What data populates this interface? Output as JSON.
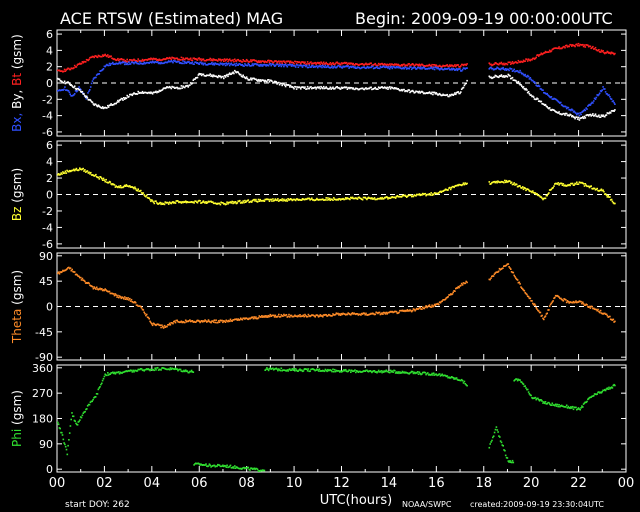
{
  "header": {
    "title": "ACE RTSW (Estimated) MAG",
    "begin": "Begin: 2009-09-19 00:00:00UTC"
  },
  "footer": {
    "start_doy": "start DOY: 262",
    "xlabel": "UTC(hours)",
    "source": "NOAA/SWPC",
    "created": "created:2009-09-19 23:30:04UTC"
  },
  "x_ticks": [
    "00",
    "02",
    "04",
    "06",
    "08",
    "10",
    "12",
    "14",
    "16",
    "18",
    "20",
    "22",
    "00"
  ],
  "colors": {
    "background": "#000000",
    "axes": "#ffffff",
    "bt": "#ff2020",
    "bx": "#3050ff",
    "by": "#ffffff",
    "bz": "#ffff30",
    "theta": "#ff8c28",
    "phi": "#30e030"
  },
  "chart_data": [
    {
      "type": "scatter",
      "panel": "bt-bx-by",
      "ylabel_parts": [
        {
          "text": "Bx,",
          "color": "#3050ff"
        },
        {
          "text": " By,",
          "color": "#ffffff"
        },
        {
          "text": " Bt",
          "color": "#ff2020"
        },
        {
          "text": "  (gsm)",
          "color": "#ffffff"
        }
      ],
      "yticks": [
        6,
        4,
        2,
        0,
        -2,
        -4,
        -6
      ],
      "ylim": [
        -6.5,
        6.5
      ],
      "xlim": [
        0,
        24
      ],
      "zero_line": true,
      "series": [
        {
          "name": "Bt",
          "color": "#ff2020",
          "x": [
            0,
            0.5,
            1,
            1.5,
            2,
            2.5,
            3,
            3.5,
            4,
            5,
            6,
            7,
            8,
            9,
            10,
            11,
            12,
            13,
            14,
            15,
            16,
            17,
            17.3,
            18.2,
            19,
            20,
            20.5,
            21,
            21.5,
            22,
            22.5,
            23,
            23.5
          ],
          "y": [
            1.5,
            1.8,
            2.5,
            3.3,
            3.5,
            3.0,
            2.8,
            2.9,
            3.0,
            3.1,
            3.0,
            2.9,
            2.8,
            2.7,
            2.6,
            2.5,
            2.5,
            2.4,
            2.3,
            2.3,
            2.2,
            2.2,
            2.4,
            2.4,
            2.5,
            3.0,
            3.8,
            4.3,
            4.6,
            4.8,
            4.5,
            3.9,
            3.7
          ]
        },
        {
          "name": "Bx",
          "color": "#3050ff",
          "x": [
            0,
            0.3,
            0.6,
            0.9,
            1.2,
            1.5,
            2,
            2.5,
            3,
            4,
            5,
            6,
            7,
            8,
            9,
            10,
            11,
            12,
            13,
            14,
            15,
            16,
            17,
            17.3,
            18.2,
            19,
            19.5,
            20,
            20.5,
            21,
            21.5,
            22,
            22.5,
            23,
            23.5
          ],
          "y": [
            -1.0,
            -0.5,
            -1.5,
            -0.5,
            -1.8,
            0.5,
            2.2,
            2.6,
            2.5,
            2.6,
            2.7,
            2.5,
            2.4,
            2.3,
            2.3,
            2.2,
            2.1,
            2.1,
            2.0,
            2.0,
            1.9,
            1.9,
            1.7,
            1.9,
            1.9,
            1.8,
            1.5,
            0.5,
            -1.0,
            -2.0,
            -3.0,
            -3.8,
            -2.5,
            -0.5,
            -2.5
          ]
        },
        {
          "name": "By",
          "color": "#ffffff",
          "x": [
            0,
            0.5,
            1,
            1.5,
            2,
            2.5,
            3,
            3.5,
            4,
            4.5,
            5,
            5.5,
            6,
            6.5,
            7,
            7.5,
            8,
            9,
            10,
            11,
            12,
            13,
            14,
            15,
            16,
            16.5,
            17,
            17.3,
            18.2,
            19,
            19.5,
            20,
            20.5,
            21,
            21.5,
            22,
            22.5,
            23,
            23.5
          ],
          "y": [
            0.5,
            0,
            -1.0,
            -2.5,
            -3.0,
            -2.2,
            -1.5,
            -1.0,
            -1.2,
            -0.5,
            -0.5,
            -0.3,
            1.2,
            1.0,
            0.8,
            1.5,
            0.6,
            0.3,
            -0.5,
            -0.5,
            -0.5,
            -0.6,
            -0.5,
            -1.0,
            -1.2,
            -1.5,
            -1.0,
            0.5,
            0.8,
            1.0,
            0,
            -1.5,
            -2.5,
            -3.5,
            -3.8,
            -4.3,
            -3.8,
            -4.0,
            -3.2
          ]
        }
      ]
    },
    {
      "type": "scatter",
      "panel": "bz",
      "ylabel_parts": [
        {
          "text": "Bz",
          "color": "#ffff30"
        },
        {
          "text": "  (gsm)",
          "color": "#ffffff"
        }
      ],
      "yticks": [
        6,
        4,
        2,
        0,
        -2,
        -4,
        -6
      ],
      "ylim": [
        -6.5,
        6.5
      ],
      "xlim": [
        0,
        24
      ],
      "zero_line": true,
      "series": [
        {
          "name": "Bz",
          "color": "#ffff30",
          "x": [
            0,
            0.5,
            1,
            1.5,
            2,
            2.5,
            3,
            3.5,
            4,
            4.5,
            5,
            6,
            7,
            8,
            9,
            10,
            11,
            12,
            13,
            14,
            15,
            16,
            16.5,
            17,
            17.3,
            18.2,
            19,
            19.5,
            20,
            20.5,
            21,
            21.5,
            22,
            22.5,
            23,
            23.5
          ],
          "y": [
            2.5,
            3.0,
            3.2,
            2.5,
            1.8,
            1.0,
            1.2,
            0.5,
            -0.8,
            -1.0,
            -0.8,
            -0.8,
            -1.0,
            -0.7,
            -0.6,
            -0.5,
            -0.5,
            -0.4,
            -0.4,
            -0.3,
            0,
            0.2,
            0.8,
            1.3,
            1.5,
            1.5,
            1.7,
            1.0,
            0.5,
            -0.5,
            1.5,
            1.2,
            1.5,
            1.0,
            0.5,
            -1.0
          ]
        }
      ]
    },
    {
      "type": "scatter",
      "panel": "theta",
      "ylabel_parts": [
        {
          "text": "Theta",
          "color": "#ff8c28"
        },
        {
          "text": "  (gsm)",
          "color": "#ffffff"
        }
      ],
      "yticks": [
        90,
        45,
        0,
        -45,
        -90
      ],
      "ylim": [
        -95,
        95
      ],
      "xlim": [
        0,
        24
      ],
      "zero_line": true,
      "series": [
        {
          "name": "Theta",
          "color": "#ff8c28",
          "x": [
            0,
            0.5,
            1,
            1.5,
            2,
            2.5,
            3,
            3.5,
            4,
            4.5,
            5,
            6,
            7,
            8,
            9,
            10,
            11,
            12,
            13,
            14,
            15,
            16,
            16.5,
            17,
            17.3,
            18.2,
            18.7,
            19,
            19.5,
            20,
            20.5,
            21,
            21.5,
            22,
            22.5,
            23,
            23.5
          ],
          "y": [
            60,
            70,
            50,
            35,
            30,
            20,
            15,
            0,
            -30,
            -35,
            -25,
            -25,
            -25,
            -20,
            -15,
            -15,
            -15,
            -12,
            -12,
            -10,
            -5,
            5,
            20,
            40,
            45,
            50,
            70,
            75,
            40,
            10,
            -20,
            20,
            10,
            10,
            0,
            -10,
            -25
          ]
        }
      ]
    },
    {
      "type": "scatter",
      "panel": "phi",
      "ylabel_parts": [
        {
          "text": "Phi",
          "color": "#30e030"
        },
        {
          "text": "  (gsm)",
          "color": "#ffffff"
        }
      ],
      "yticks": [
        360,
        270,
        180,
        90,
        0
      ],
      "ylim": [
        -10,
        370
      ],
      "xlim": [
        0,
        24
      ],
      "zero_line": false,
      "series": [
        {
          "name": "Phi",
          "color": "#30e030",
          "x": [
            0,
            0.2,
            0.4,
            0.6,
            0.8,
            1,
            1.3,
            1.6,
            2,
            2.5,
            3,
            3.5,
            4,
            4.5,
            5,
            5.5,
            6,
            6.5,
            7,
            7.5,
            8,
            8.5,
            9,
            10,
            11,
            12,
            13,
            14,
            15,
            16,
            16.5,
            17,
            17.3,
            18.2,
            18.5,
            19,
            19.5,
            20,
            20.5,
            21,
            21.5,
            22,
            22.5,
            23,
            23.5
          ],
          "y": [
            170,
            120,
            60,
            200,
            160,
            190,
            230,
            260,
            340,
            345,
            350,
            355,
            358,
            360,
            358,
            350,
            20,
            15,
            15,
            10,
            5,
            0,
            358,
            355,
            355,
            352,
            350,
            350,
            345,
            340,
            330,
            320,
            300,
            80,
            150,
            30,
            320,
            260,
            240,
            230,
            225,
            215,
            260,
            280,
            300
          ]
        }
      ]
    }
  ]
}
